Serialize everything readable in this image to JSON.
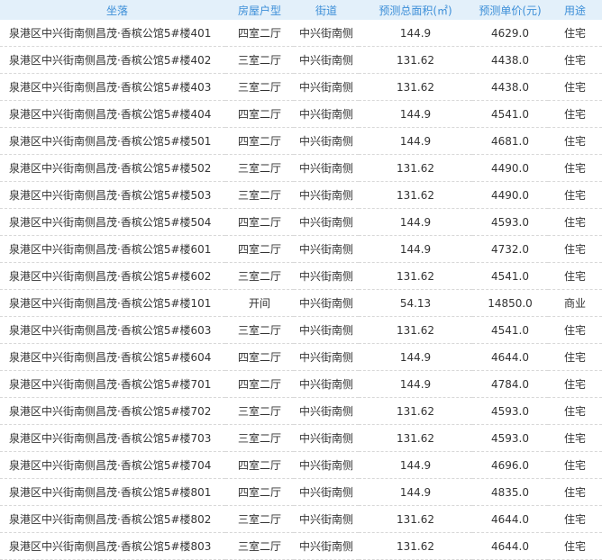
{
  "colors": {
    "header_bg": "#e3f0fa",
    "header_text": "#3d8fd8"
  },
  "table": {
    "headers": [
      "坐落",
      "房屋户型",
      "街道",
      "预测总面积(㎡)",
      "预测单价(元)",
      "用途"
    ],
    "rows": [
      [
        "泉港区中兴街南侧昌茂·香槟公馆5#楼401",
        "四室二厅",
        "中兴街南侧",
        "144.9",
        "4629.0",
        "住宅"
      ],
      [
        "泉港区中兴街南侧昌茂·香槟公馆5#楼402",
        "三室二厅",
        "中兴街南侧",
        "131.62",
        "4438.0",
        "住宅"
      ],
      [
        "泉港区中兴街南侧昌茂·香槟公馆5#楼403",
        "三室二厅",
        "中兴街南侧",
        "131.62",
        "4438.0",
        "住宅"
      ],
      [
        "泉港区中兴街南侧昌茂·香槟公馆5#楼404",
        "四室二厅",
        "中兴街南侧",
        "144.9",
        "4541.0",
        "住宅"
      ],
      [
        "泉港区中兴街南侧昌茂·香槟公馆5#楼501",
        "四室二厅",
        "中兴街南侧",
        "144.9",
        "4681.0",
        "住宅"
      ],
      [
        "泉港区中兴街南侧昌茂·香槟公馆5#楼502",
        "三室二厅",
        "中兴街南侧",
        "131.62",
        "4490.0",
        "住宅"
      ],
      [
        "泉港区中兴街南侧昌茂·香槟公馆5#楼503",
        "三室二厅",
        "中兴街南侧",
        "131.62",
        "4490.0",
        "住宅"
      ],
      [
        "泉港区中兴街南侧昌茂·香槟公馆5#楼504",
        "四室二厅",
        "中兴街南侧",
        "144.9",
        "4593.0",
        "住宅"
      ],
      [
        "泉港区中兴街南侧昌茂·香槟公馆5#楼601",
        "四室二厅",
        "中兴街南侧",
        "144.9",
        "4732.0",
        "住宅"
      ],
      [
        "泉港区中兴街南侧昌茂·香槟公馆5#楼602",
        "三室二厅",
        "中兴街南侧",
        "131.62",
        "4541.0",
        "住宅"
      ],
      [
        "泉港区中兴街南侧昌茂·香槟公馆5#楼101",
        "开间",
        "中兴街南侧",
        "54.13",
        "14850.0",
        "商业"
      ],
      [
        "泉港区中兴街南侧昌茂·香槟公馆5#楼603",
        "三室二厅",
        "中兴街南侧",
        "131.62",
        "4541.0",
        "住宅"
      ],
      [
        "泉港区中兴街南侧昌茂·香槟公馆5#楼604",
        "四室二厅",
        "中兴街南侧",
        "144.9",
        "4644.0",
        "住宅"
      ],
      [
        "泉港区中兴街南侧昌茂·香槟公馆5#楼701",
        "四室二厅",
        "中兴街南侧",
        "144.9",
        "4784.0",
        "住宅"
      ],
      [
        "泉港区中兴街南侧昌茂·香槟公馆5#楼702",
        "三室二厅",
        "中兴街南侧",
        "131.62",
        "4593.0",
        "住宅"
      ],
      [
        "泉港区中兴街南侧昌茂·香槟公馆5#楼703",
        "三室二厅",
        "中兴街南侧",
        "131.62",
        "4593.0",
        "住宅"
      ],
      [
        "泉港区中兴街南侧昌茂·香槟公馆5#楼704",
        "四室二厅",
        "中兴街南侧",
        "144.9",
        "4696.0",
        "住宅"
      ],
      [
        "泉港区中兴街南侧昌茂·香槟公馆5#楼801",
        "四室二厅",
        "中兴街南侧",
        "144.9",
        "4835.0",
        "住宅"
      ],
      [
        "泉港区中兴街南侧昌茂·香槟公馆5#楼802",
        "三室二厅",
        "中兴街南侧",
        "131.62",
        "4644.0",
        "住宅"
      ],
      [
        "泉港区中兴街南侧昌茂·香槟公馆5#楼803",
        "三室二厅",
        "中兴街南侧",
        "131.62",
        "4644.0",
        "住宅"
      ]
    ]
  }
}
